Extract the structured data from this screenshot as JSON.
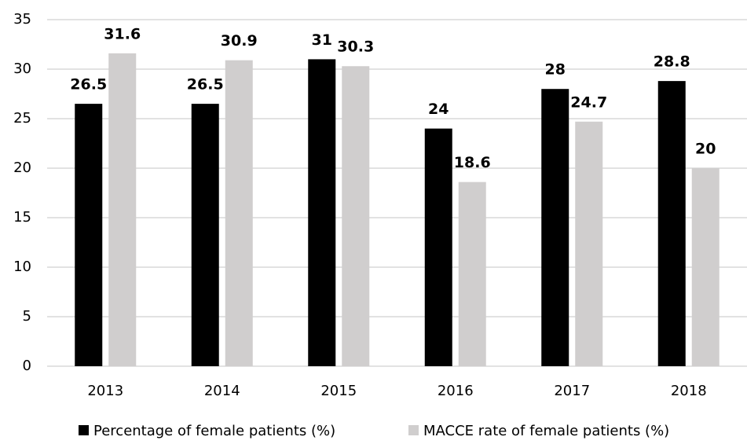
{
  "chart_data": {
    "type": "bar",
    "categories": [
      "2013",
      "2014",
      "2015",
      "2016",
      "2017",
      "2018"
    ],
    "series": [
      {
        "name": "Percentage of female patients (%)",
        "color": "#000000",
        "values": [
          26.5,
          26.5,
          31,
          24,
          28,
          28.8
        ]
      },
      {
        "name": "MACCE rate of female patients (%)",
        "color": "#d0cece",
        "values": [
          31.6,
          30.9,
          30.3,
          18.6,
          24.7,
          20
        ]
      }
    ],
    "ylim": [
      0,
      35
    ],
    "yticks": [
      0,
      5,
      10,
      15,
      20,
      25,
      30,
      35
    ],
    "grid": true,
    "legend": "bottom"
  }
}
